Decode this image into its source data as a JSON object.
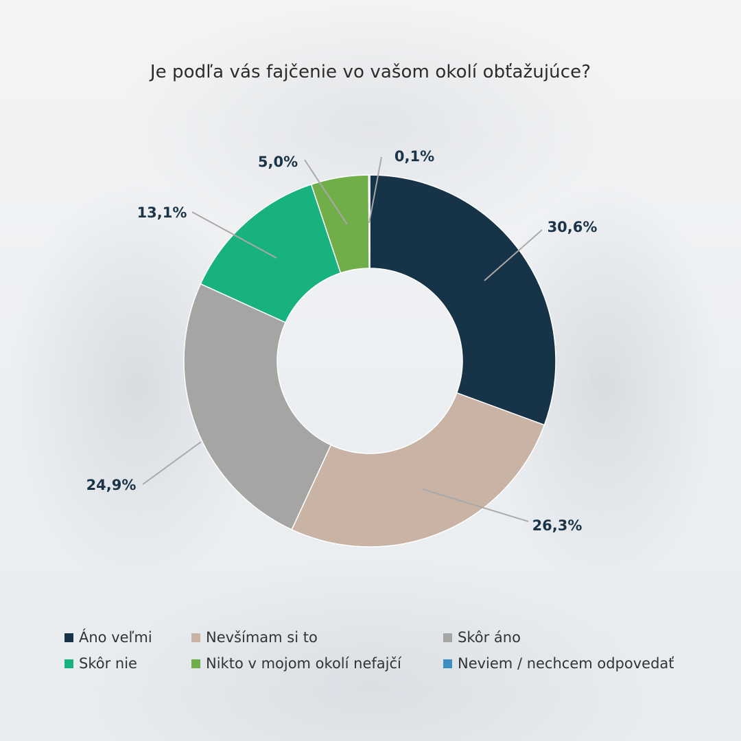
{
  "chart_data": {
    "type": "donut",
    "title": "Je podľa vás fajčenie vo vašom okolí obťažujúce?",
    "legend_position": "bottom",
    "slices": [
      {
        "label": "Áno veľmi",
        "value": 30.6,
        "display": "30,6%",
        "color": "#173348"
      },
      {
        "label": "Nevšímam si to",
        "value": 26.3,
        "display": "26,3%",
        "color": "#c8b3a5"
      },
      {
        "label": "Skôr áno",
        "value": 24.9,
        "display": "24,9%",
        "color": "#a5a5a3"
      },
      {
        "label": "Skôr nie",
        "value": 13.1,
        "display": "13,1%",
        "color": "#17b27e"
      },
      {
        "label": "Nikto v mojom okolí nefajčí",
        "value": 5.0,
        "display": "5,0%",
        "color": "#70ae4a"
      },
      {
        "label": "Neviem / nechcem odpovedať",
        "value": 0.1,
        "display": "0,1%",
        "color": "#3d8fc1"
      }
    ]
  }
}
